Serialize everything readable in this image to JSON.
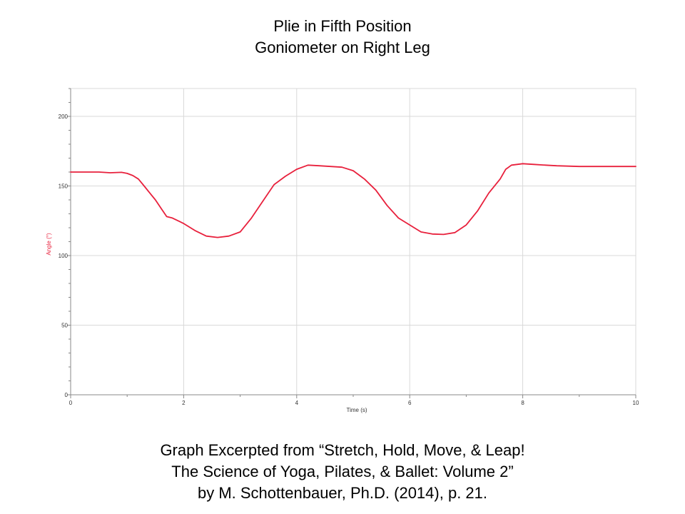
{
  "slide": {
    "title_line1": "Plie in Fifth Position",
    "title_line2": "Goniometer on Right Leg",
    "caption_line1": "Graph Excerpted from “Stretch, Hold, Move, & Leap!",
    "caption_line2": "The Science of Yoga, Pilates, & Ballet: Volume 2”",
    "caption_line3": "by M. Schottenbauer, Ph.D. (2014), p. 21."
  },
  "chart_data": {
    "type": "line",
    "title": "",
    "xlabel": "Time (s)",
    "ylabel": "Angle (°)",
    "xlim": [
      0,
      10
    ],
    "ylim": [
      0,
      220
    ],
    "x_ticks": [
      0,
      2,
      4,
      6,
      8,
      10
    ],
    "y_ticks": [
      0,
      50,
      100,
      150,
      200
    ],
    "grid": true,
    "colors": {
      "line": "#e8203c",
      "ylabel": "#e8203c",
      "grid": "#d9d9d9",
      "axis": "#888888"
    },
    "series": [
      {
        "x": [
          0,
          0.5,
          0.7,
          0.9,
          1.0,
          1.1,
          1.2,
          1.3,
          1.4,
          1.5,
          1.6,
          1.7,
          1.8,
          2.0,
          2.2,
          2.4,
          2.6,
          2.8,
          3.0,
          3.2,
          3.4,
          3.6,
          3.8,
          4.0,
          4.2,
          4.4,
          4.6,
          4.8,
          5.0,
          5.2,
          5.4,
          5.6,
          5.8,
          6.0,
          6.2,
          6.4,
          6.6,
          6.8,
          7.0,
          7.2,
          7.4,
          7.6,
          7.7,
          7.8,
          8.0,
          8.2,
          8.4,
          8.6,
          9.0,
          9.5,
          10.0
        ],
        "y": [
          160,
          160,
          159.5,
          159.8,
          159,
          157.5,
          155,
          150,
          145,
          140,
          134,
          128,
          127,
          123,
          118,
          114,
          113,
          114,
          117,
          127,
          139,
          151,
          157,
          162,
          165,
          164.5,
          164,
          163.5,
          161,
          155,
          147,
          136,
          127,
          122,
          117,
          115.5,
          115.2,
          116.5,
          122,
          132,
          145,
          155,
          162,
          165,
          166,
          165.5,
          165,
          164.5,
          164,
          164,
          164
        ]
      }
    ]
  }
}
